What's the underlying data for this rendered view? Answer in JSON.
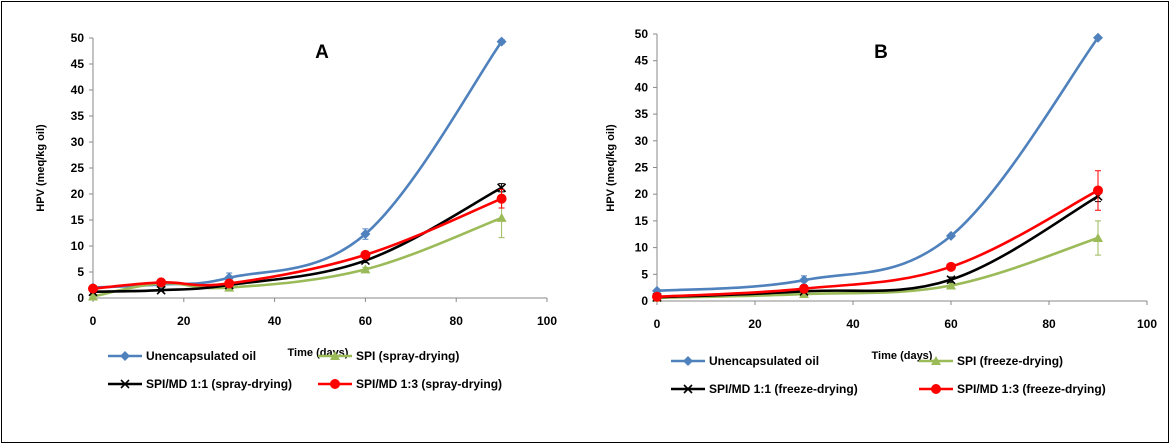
{
  "chart_data": [
    {
      "type": "line",
      "title": "A",
      "xlabel": "Time (days)",
      "ylabel": "HPV (meq/kg oil)",
      "xlim": [
        0,
        100
      ],
      "ylim": [
        0,
        50
      ],
      "xticks": [
        0,
        20,
        40,
        60,
        80,
        100
      ],
      "yticks": [
        0,
        5,
        10,
        15,
        20,
        25,
        30,
        35,
        40,
        45,
        50
      ],
      "grid": false,
      "legend": "bottom",
      "series": [
        {
          "name": "Unencapsulated oil",
          "color": "#4f81bd",
          "marker": "diamond",
          "x": [
            0,
            15,
            30,
            60,
            90
          ],
          "y": [
            2.0,
            2.6,
            3.9,
            12.3,
            49.3
          ],
          "err": [
            0.3,
            0.3,
            0.9,
            1.0,
            0.4
          ]
        },
        {
          "name": "SPI (spray-drying)",
          "color": "#9bbb59",
          "marker": "triangle",
          "x": [
            0,
            15,
            30,
            60,
            90
          ],
          "y": [
            0.3,
            2.8,
            2.0,
            5.5,
            15.4
          ],
          "err": [
            0.2,
            0.3,
            0.3,
            0.4,
            3.8
          ]
        },
        {
          "name": "SPI/MD 1:1 (spray-drying)",
          "color": "#000000",
          "marker": "x",
          "x": [
            0,
            15,
            30,
            60,
            90
          ],
          "y": [
            1.2,
            1.5,
            2.5,
            7.2,
            21.2
          ],
          "err": [
            0.2,
            0.2,
            0.3,
            0.4,
            0.8
          ]
        },
        {
          "name": "SPI/MD 1:3 (spray-drying)",
          "color": "#ff0000",
          "marker": "circle",
          "x": [
            0,
            15,
            30,
            60,
            90
          ],
          "y": [
            1.8,
            3.0,
            2.8,
            8.3,
            19.1
          ],
          "err": [
            0.3,
            0.3,
            0.3,
            0.6,
            1.8
          ]
        }
      ]
    },
    {
      "type": "line",
      "title": "B",
      "xlabel": "Time (days)",
      "ylabel": "HPV (meq/kg oil)",
      "xlim": [
        0,
        100
      ],
      "ylim": [
        0,
        50
      ],
      "xticks": [
        0,
        20,
        40,
        60,
        80,
        100
      ],
      "yticks": [
        0,
        5,
        10,
        15,
        20,
        25,
        30,
        35,
        40,
        45,
        50
      ],
      "grid": false,
      "legend": "bottom",
      "series": [
        {
          "name": "Unencapsulated oil",
          "color": "#4f81bd",
          "marker": "diamond",
          "x": [
            0,
            30,
            60,
            90
          ],
          "y": [
            1.9,
            3.9,
            12.2,
            49.3
          ],
          "err": [
            0.3,
            0.8,
            0.3,
            0.3
          ]
        },
        {
          "name": "SPI (freeze-drying)",
          "color": "#9bbb59",
          "marker": "triangle",
          "x": [
            0,
            30,
            60,
            90
          ],
          "y": [
            0.6,
            1.3,
            2.9,
            11.8
          ],
          "err": [
            0.2,
            0.2,
            0.4,
            3.2
          ]
        },
        {
          "name": "SPI/MD 1:1 (freeze-drying)",
          "color": "#000000",
          "marker": "x",
          "x": [
            0,
            30,
            60,
            90
          ],
          "y": [
            0.7,
            1.8,
            4.0,
            19.6
          ],
          "err": [
            0.2,
            0.3,
            0.5,
            1.0
          ]
        },
        {
          "name": "SPI/MD 1:3 (freeze-drying)",
          "color": "#ff0000",
          "marker": "circle",
          "x": [
            0,
            30,
            60,
            90
          ],
          "y": [
            0.8,
            2.3,
            6.4,
            20.7
          ],
          "err": [
            0.2,
            0.3,
            0.4,
            3.7
          ]
        }
      ]
    }
  ]
}
